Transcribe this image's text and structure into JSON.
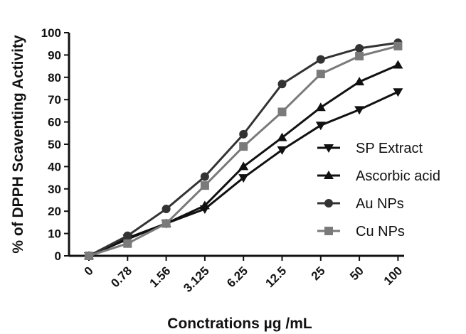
{
  "chart_data": {
    "type": "line",
    "categories": [
      "0",
      "0.78",
      "1.56",
      "3.125",
      "6.25",
      "12.5",
      "25",
      "50",
      "100"
    ],
    "ylabel": "% of DPPH Scaventing Activity",
    "xlabel": "Conctrations µg /mL",
    "ylim": [
      0,
      100
    ],
    "yticks": [
      "0",
      "10",
      "20",
      "30",
      "40",
      "50",
      "60",
      "70",
      "80",
      "90",
      "100"
    ],
    "grid": false,
    "legend_position": "right",
    "series": [
      {
        "name": "SP Extract",
        "marker": "triangle-down",
        "color": "#111111",
        "values": [
          0,
          8,
          14.5,
          21,
          35,
          47.5,
          58.5,
          65.5,
          73.5
        ]
      },
      {
        "name": "Ascorbic acid",
        "marker": "triangle-up",
        "color": "#111111",
        "values": [
          0,
          7.5,
          14.5,
          22.5,
          40,
          53,
          66.5,
          78,
          85.5
        ]
      },
      {
        "name": "Au NPs",
        "marker": "circle",
        "color": "#333333",
        "values": [
          0,
          9,
          21,
          35.5,
          54.5,
          77,
          88,
          93,
          95.5
        ]
      },
      {
        "name": "Cu NPs",
        "marker": "square",
        "color": "#7a7a7a",
        "values": [
          0,
          5.5,
          14.5,
          31.5,
          49,
          64.5,
          81.5,
          89.5,
          94
        ]
      }
    ]
  }
}
